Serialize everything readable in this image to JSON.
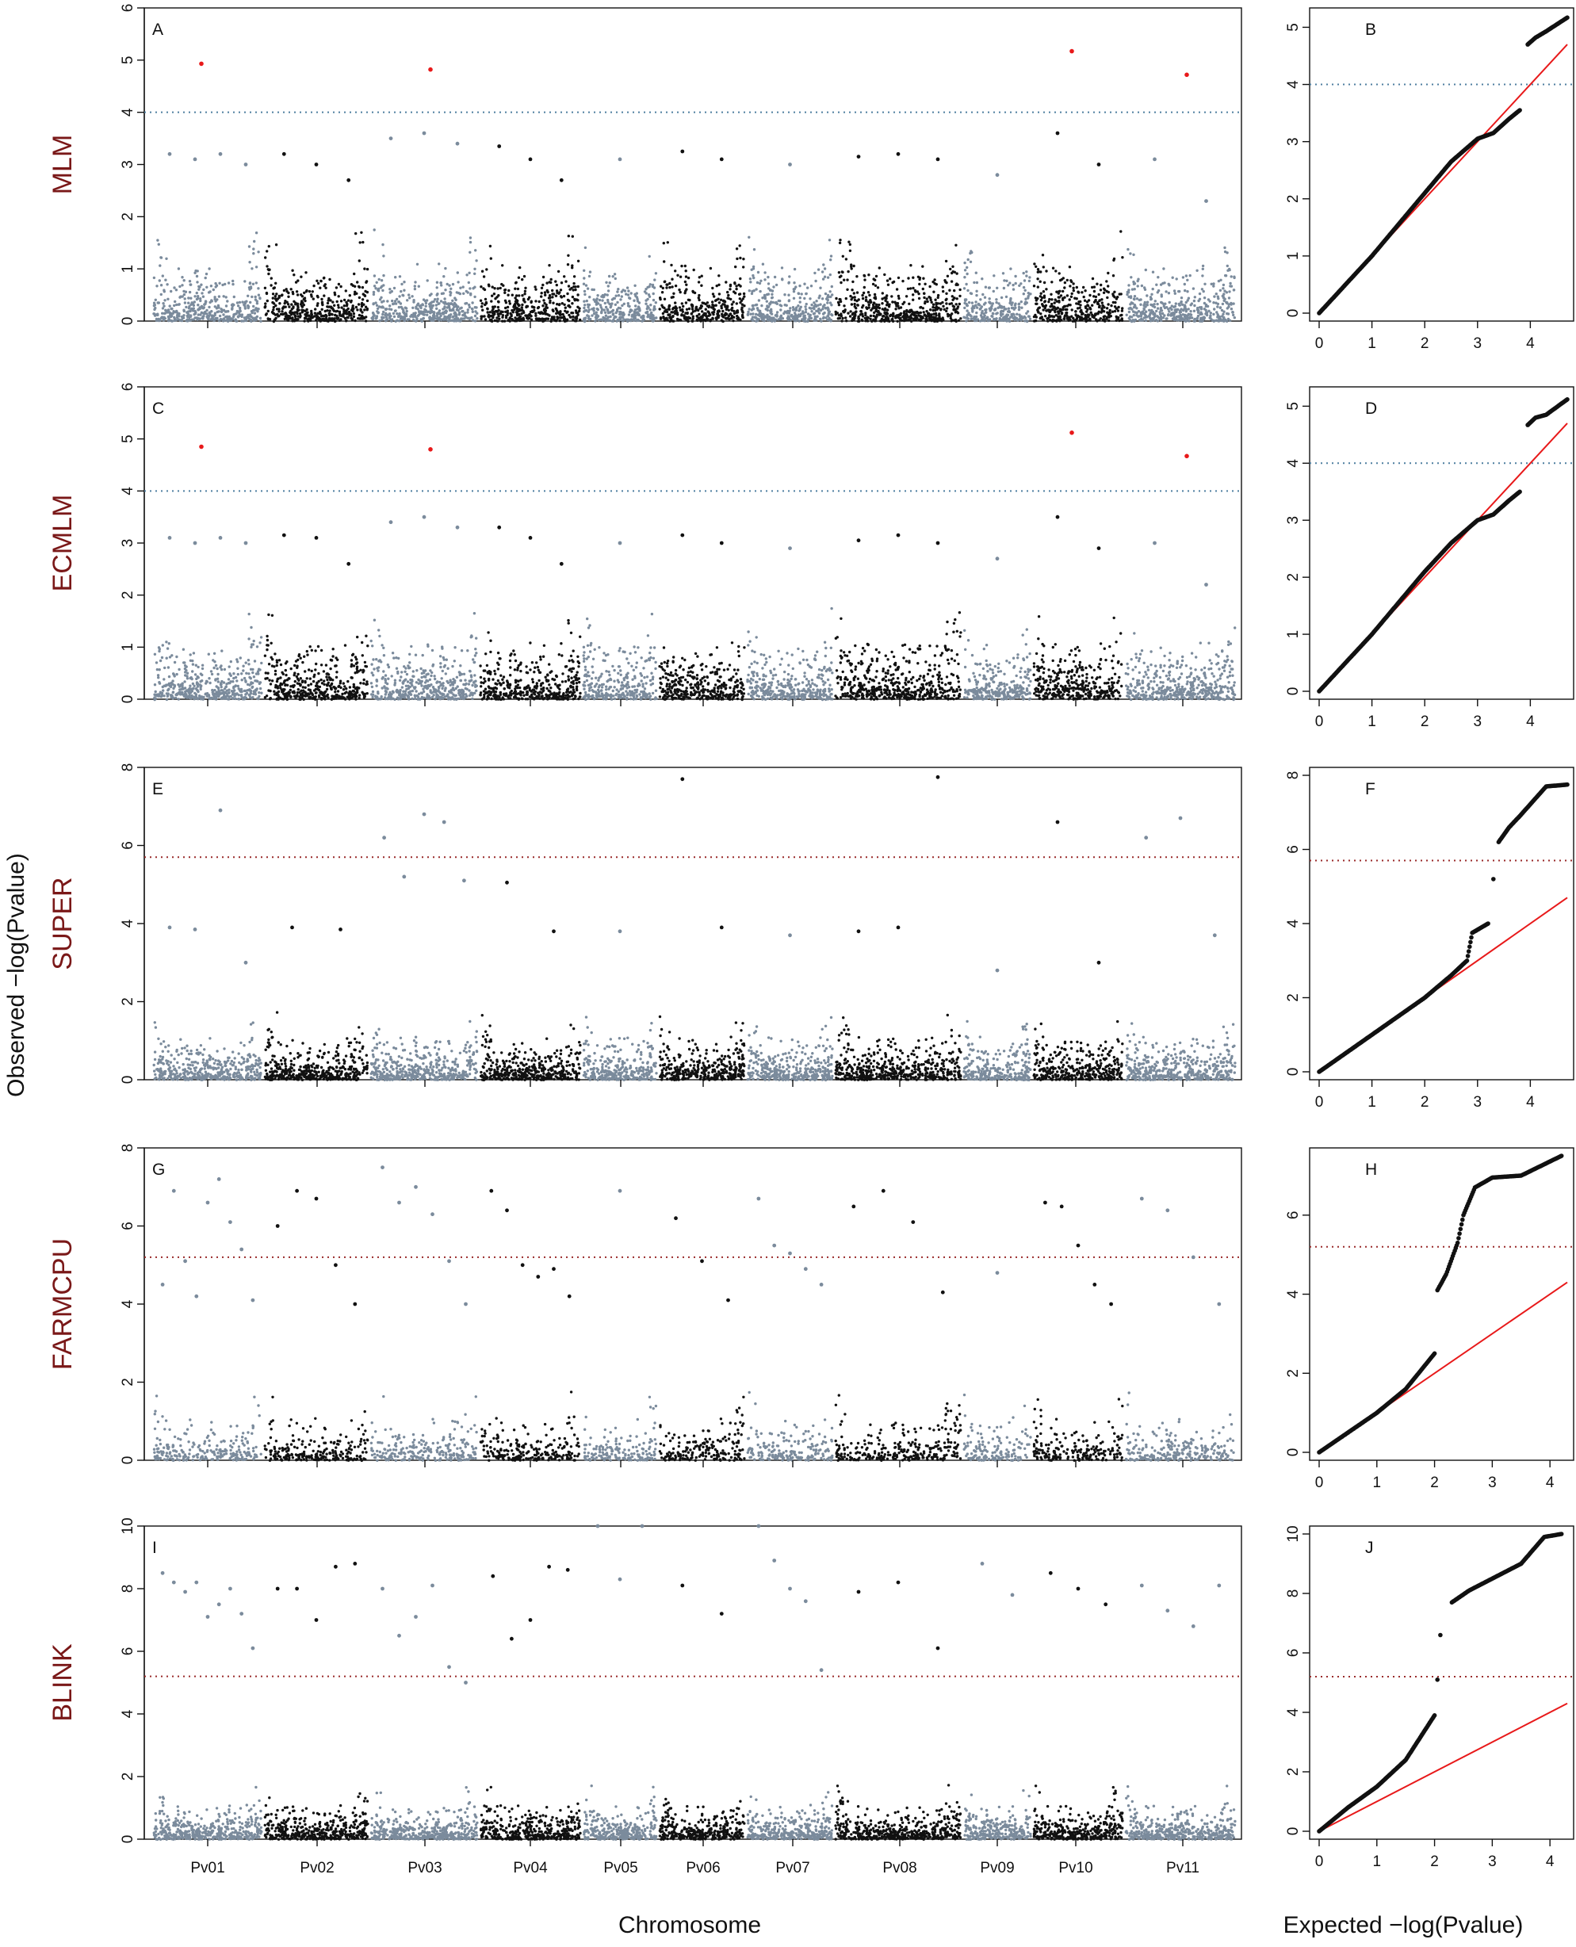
{
  "figure": {
    "y_axis_title": "Observed −log(Pvalue)",
    "x_axis_title_manhattan": "Chromosome",
    "x_axis_title_qq": "Expected −log(Pvalue)"
  },
  "colors": {
    "odd_chromosome": "#7b8b9c",
    "even_chromosome": "#111111",
    "significant_point": "#e8191a",
    "mlm_threshold_line": "#4f7fa0",
    "bonferroni_threshold_line": "#9a2a2a",
    "qq_reference_line": "#e8191a",
    "method_label": "#7a1818"
  },
  "chart_data": [
    {
      "type": "scatter",
      "panel": "A",
      "method": "MLM",
      "chromosomes": [
        "Pv01",
        "Pv02",
        "Pv03",
        "Pv04",
        "Pv05",
        "Pv06",
        "Pv07",
        "Pv08",
        "Pv09",
        "Pv10",
        "Pv11"
      ],
      "ylim": [
        0,
        6
      ],
      "yticks": [
        0,
        1,
        2,
        3,
        4,
        5,
        6
      ],
      "threshold": 4.0,
      "peaks": [
        {
          "chr": "Pv01",
          "values": [
            3.2,
            3.1,
            3.2,
            3.0
          ]
        },
        {
          "chr": "Pv02",
          "values": [
            3.2,
            3.0,
            2.7
          ]
        },
        {
          "chr": "Pv03",
          "values": [
            3.5,
            3.6,
            3.4
          ]
        },
        {
          "chr": "Pv04",
          "values": [
            3.35,
            3.1,
            2.7
          ]
        },
        {
          "chr": "Pv05",
          "values": [
            3.1
          ]
        },
        {
          "chr": "Pv06",
          "values": [
            3.25,
            3.1
          ]
        },
        {
          "chr": "Pv07",
          "values": [
            3.0
          ]
        },
        {
          "chr": "Pv08",
          "values": [
            3.15,
            3.2,
            3.1
          ]
        },
        {
          "chr": "Pv09",
          "values": [
            2.8
          ]
        },
        {
          "chr": "Pv10",
          "values": [
            3.6,
            3.0
          ]
        },
        {
          "chr": "Pv11",
          "values": [
            3.1,
            2.3
          ]
        }
      ],
      "significant_snps": [
        {
          "chr": "Pv01",
          "value": 4.93
        },
        {
          "chr": "Pv03",
          "value": 4.82
        },
        {
          "chr": "Pv10",
          "value": 5.17
        },
        {
          "chr": "Pv11",
          "value": 4.72
        }
      ]
    },
    {
      "type": "scatter",
      "panel": "B",
      "method": "MLM",
      "qq": true,
      "xlim": [
        0,
        4.7
      ],
      "xticks": [
        0,
        1,
        2,
        3,
        4
      ],
      "ylim": [
        0,
        5.2
      ],
      "yticks": [
        0,
        1,
        2,
        3,
        4,
        5
      ],
      "threshold": 4.0,
      "expected": [
        0,
        0.5,
        1,
        1.5,
        2,
        2.5,
        3,
        3.3,
        3.6,
        3.8,
        3.95,
        4.1,
        4.3,
        4.7
      ],
      "observed": [
        0,
        0.5,
        1.0,
        1.55,
        2.1,
        2.65,
        3.05,
        3.15,
        3.4,
        3.55,
        4.7,
        4.82,
        4.93,
        5.17
      ],
      "reference_line": {
        "slope": 1.0,
        "intercept": 0
      }
    },
    {
      "type": "scatter",
      "panel": "C",
      "method": "ECMLM",
      "chromosomes": [
        "Pv01",
        "Pv02",
        "Pv03",
        "Pv04",
        "Pv05",
        "Pv06",
        "Pv07",
        "Pv08",
        "Pv09",
        "Pv10",
        "Pv11"
      ],
      "ylim": [
        0,
        6
      ],
      "yticks": [
        0,
        1,
        2,
        3,
        4,
        5,
        6
      ],
      "threshold": 4.0,
      "peaks": [
        {
          "chr": "Pv01",
          "values": [
            3.1,
            3.0,
            3.1,
            3.0
          ]
        },
        {
          "chr": "Pv02",
          "values": [
            3.15,
            3.1,
            2.6
          ]
        },
        {
          "chr": "Pv03",
          "values": [
            3.4,
            3.5,
            3.3
          ]
        },
        {
          "chr": "Pv04",
          "values": [
            3.3,
            3.1,
            2.6
          ]
        },
        {
          "chr": "Pv05",
          "values": [
            3.0
          ]
        },
        {
          "chr": "Pv06",
          "values": [
            3.15,
            3.0
          ]
        },
        {
          "chr": "Pv07",
          "values": [
            2.9
          ]
        },
        {
          "chr": "Pv08",
          "values": [
            3.05,
            3.15,
            3.0
          ]
        },
        {
          "chr": "Pv09",
          "values": [
            2.7
          ]
        },
        {
          "chr": "Pv10",
          "values": [
            3.5,
            2.9
          ]
        },
        {
          "chr": "Pv11",
          "values": [
            3.0,
            2.2
          ]
        }
      ],
      "significant_snps": [
        {
          "chr": "Pv01",
          "value": 4.85
        },
        {
          "chr": "Pv03",
          "value": 4.8
        },
        {
          "chr": "Pv10",
          "value": 5.12
        },
        {
          "chr": "Pv11",
          "value": 4.67
        }
      ]
    },
    {
      "type": "scatter",
      "panel": "D",
      "method": "ECMLM",
      "qq": true,
      "xlim": [
        0,
        4.7
      ],
      "xticks": [
        0,
        1,
        2,
        3,
        4
      ],
      "ylim": [
        0,
        5.2
      ],
      "yticks": [
        0,
        1,
        2,
        3,
        4,
        5
      ],
      "threshold": 4.0,
      "expected": [
        0,
        0.5,
        1,
        1.5,
        2,
        2.5,
        3,
        3.3,
        3.6,
        3.8,
        3.95,
        4.1,
        4.3,
        4.7
      ],
      "observed": [
        0,
        0.5,
        1.0,
        1.55,
        2.1,
        2.6,
        3.0,
        3.1,
        3.35,
        3.5,
        4.67,
        4.8,
        4.85,
        5.12
      ],
      "reference_line": {
        "slope": 1.0,
        "intercept": 0
      }
    },
    {
      "type": "scatter",
      "panel": "E",
      "method": "SUPER",
      "chromosomes": [
        "Pv01",
        "Pv02",
        "Pv03",
        "Pv04",
        "Pv05",
        "Pv06",
        "Pv07",
        "Pv08",
        "Pv09",
        "Pv10",
        "Pv11"
      ],
      "ylim": [
        0,
        8
      ],
      "yticks": [
        0,
        2,
        4,
        6,
        8
      ],
      "threshold": 5.7,
      "peaks": [
        {
          "chr": "Pv01",
          "values": [
            3.9,
            3.85,
            6.9,
            3.0
          ]
        },
        {
          "chr": "Pv02",
          "values": [
            3.9,
            3.85
          ]
        },
        {
          "chr": "Pv03",
          "values": [
            6.2,
            5.2,
            6.8,
            6.6,
            5.1
          ]
        },
        {
          "chr": "Pv04",
          "values": [
            5.05,
            3.8
          ]
        },
        {
          "chr": "Pv05",
          "values": [
            3.8
          ]
        },
        {
          "chr": "Pv06",
          "values": [
            7.7,
            3.9
          ]
        },
        {
          "chr": "Pv07",
          "values": [
            3.7
          ]
        },
        {
          "chr": "Pv08",
          "values": [
            3.8,
            3.9,
            7.75
          ]
        },
        {
          "chr": "Pv09",
          "values": [
            2.8
          ]
        },
        {
          "chr": "Pv10",
          "values": [
            6.6,
            3.0
          ]
        },
        {
          "chr": "Pv11",
          "values": [
            6.2,
            6.7,
            3.7
          ]
        }
      ],
      "significant_snps": []
    },
    {
      "type": "scatter",
      "panel": "F",
      "method": "SUPER",
      "qq": true,
      "xlim": [
        0,
        4.7
      ],
      "xticks": [
        0,
        1,
        2,
        3,
        4
      ],
      "ylim": [
        0,
        8
      ],
      "yticks": [
        0,
        2,
        4,
        6,
        8
      ],
      "threshold": 5.7,
      "expected": [
        0,
        0.5,
        1,
        1.5,
        2,
        2.5,
        2.8,
        2.9,
        3.2,
        3.3,
        3.4,
        3.6,
        3.8,
        4.3,
        4.7
      ],
      "observed": [
        0,
        0.5,
        1.0,
        1.5,
        2.0,
        2.6,
        3.0,
        3.75,
        4.0,
        5.2,
        6.2,
        6.6,
        6.9,
        7.7,
        7.75
      ],
      "reference_line": {
        "slope": 1.0,
        "intercept": 0
      }
    },
    {
      "type": "scatter",
      "panel": "G",
      "method": "FARMCPU",
      "chromosomes": [
        "Pv01",
        "Pv02",
        "Pv03",
        "Pv04",
        "Pv05",
        "Pv06",
        "Pv07",
        "Pv08",
        "Pv09",
        "Pv10",
        "Pv11"
      ],
      "ylim": [
        0,
        8
      ],
      "yticks": [
        0,
        2,
        4,
        6,
        8
      ],
      "threshold": 5.2,
      "peaks": [
        {
          "chr": "Pv01",
          "values": [
            4.5,
            6.9,
            5.1,
            4.2,
            6.6,
            7.2,
            6.1,
            5.4,
            4.1
          ]
        },
        {
          "chr": "Pv02",
          "values": [
            6.0,
            6.9,
            6.7,
            5.0,
            4.0
          ]
        },
        {
          "chr": "Pv03",
          "values": [
            7.5,
            6.6,
            7.0,
            6.3,
            5.1,
            4.0
          ]
        },
        {
          "chr": "Pv04",
          "values": [
            6.9,
            6.4,
            5.0,
            4.7,
            4.9,
            4.2
          ]
        },
        {
          "chr": "Pv05",
          "values": [
            6.9
          ]
        },
        {
          "chr": "Pv06",
          "values": [
            6.2,
            5.1,
            4.1
          ]
        },
        {
          "chr": "Pv07",
          "values": [
            6.7,
            5.5,
            5.3,
            4.9,
            4.5
          ]
        },
        {
          "chr": "Pv08",
          "values": [
            6.5,
            6.9,
            6.1,
            4.3
          ]
        },
        {
          "chr": "Pv09",
          "values": [
            4.8
          ]
        },
        {
          "chr": "Pv10",
          "values": [
            6.6,
            6.5,
            5.5,
            4.5,
            4.0
          ]
        },
        {
          "chr": "Pv11",
          "values": [
            6.7,
            6.4,
            5.2,
            4.0
          ]
        }
      ],
      "significant_snps": []
    },
    {
      "type": "scatter",
      "panel": "H",
      "method": "FARMCPU",
      "qq": true,
      "xlim": [
        0,
        4.3
      ],
      "xticks": [
        0,
        1,
        2,
        3,
        4
      ],
      "ylim": [
        0,
        7.5
      ],
      "yticks": [
        0,
        2,
        4,
        6
      ],
      "threshold": 5.2,
      "expected": [
        0,
        0.5,
        1,
        1.5,
        2,
        2.05,
        2.2,
        2.4,
        2.5,
        2.7,
        3.0,
        3.5,
        4.2
      ],
      "observed": [
        0,
        0.5,
        1.0,
        1.6,
        2.5,
        4.1,
        4.5,
        5.3,
        6.0,
        6.7,
        6.95,
        7.0,
        7.5
      ],
      "reference_line": {
        "slope": 1.0,
        "intercept": 0
      }
    },
    {
      "type": "scatter",
      "panel": "I",
      "method": "BLINK",
      "chromosomes": [
        "Pv01",
        "Pv02",
        "Pv03",
        "Pv04",
        "Pv05",
        "Pv06",
        "Pv07",
        "Pv08",
        "Pv09",
        "Pv10",
        "Pv11"
      ],
      "ylim": [
        0,
        10
      ],
      "yticks": [
        0,
        2,
        4,
        6,
        8,
        10
      ],
      "threshold": 5.2,
      "peaks": [
        {
          "chr": "Pv01",
          "values": [
            8.5,
            8.2,
            7.9,
            8.2,
            7.1,
            7.5,
            8.0,
            7.2,
            6.1
          ]
        },
        {
          "chr": "Pv02",
          "values": [
            8.0,
            8.0,
            7.0,
            8.7,
            8.8
          ]
        },
        {
          "chr": "Pv03",
          "values": [
            8.0,
            6.5,
            7.1,
            8.1,
            5.5,
            5.0
          ]
        },
        {
          "chr": "Pv04",
          "values": [
            8.4,
            6.4,
            7.0,
            8.7,
            8.6
          ]
        },
        {
          "chr": "Pv05",
          "values": [
            10.0,
            8.3,
            10.0
          ]
        },
        {
          "chr": "Pv06",
          "values": [
            8.1,
            7.2
          ]
        },
        {
          "chr": "Pv07",
          "values": [
            10.0,
            8.9,
            8.0,
            7.6,
            5.4
          ]
        },
        {
          "chr": "Pv08",
          "values": [
            7.9,
            8.2,
            6.1
          ]
        },
        {
          "chr": "Pv09",
          "values": [
            8.8,
            7.8
          ]
        },
        {
          "chr": "Pv10",
          "values": [
            8.5,
            8.0,
            7.5
          ]
        },
        {
          "chr": "Pv11",
          "values": [
            8.1,
            7.3,
            6.8,
            8.1
          ]
        }
      ],
      "significant_snps": []
    },
    {
      "type": "scatter",
      "panel": "J",
      "method": "BLINK",
      "qq": true,
      "xlim": [
        0,
        4.3
      ],
      "xticks": [
        0,
        1,
        2,
        3,
        4
      ],
      "ylim": [
        0,
        10
      ],
      "yticks": [
        0,
        2,
        4,
        6,
        8,
        10
      ],
      "threshold": 5.2,
      "expected": [
        0,
        0.5,
        1,
        1.5,
        2,
        2.05,
        2.1,
        2.3,
        2.6,
        3.0,
        3.3,
        3.5,
        3.9,
        4.2
      ],
      "observed": [
        0,
        0.8,
        1.5,
        2.4,
        3.9,
        5.1,
        6.6,
        7.7,
        8.1,
        8.5,
        8.8,
        9.0,
        9.9,
        10.0
      ],
      "reference_line": {
        "slope": 1.0,
        "intercept": 0
      }
    }
  ]
}
